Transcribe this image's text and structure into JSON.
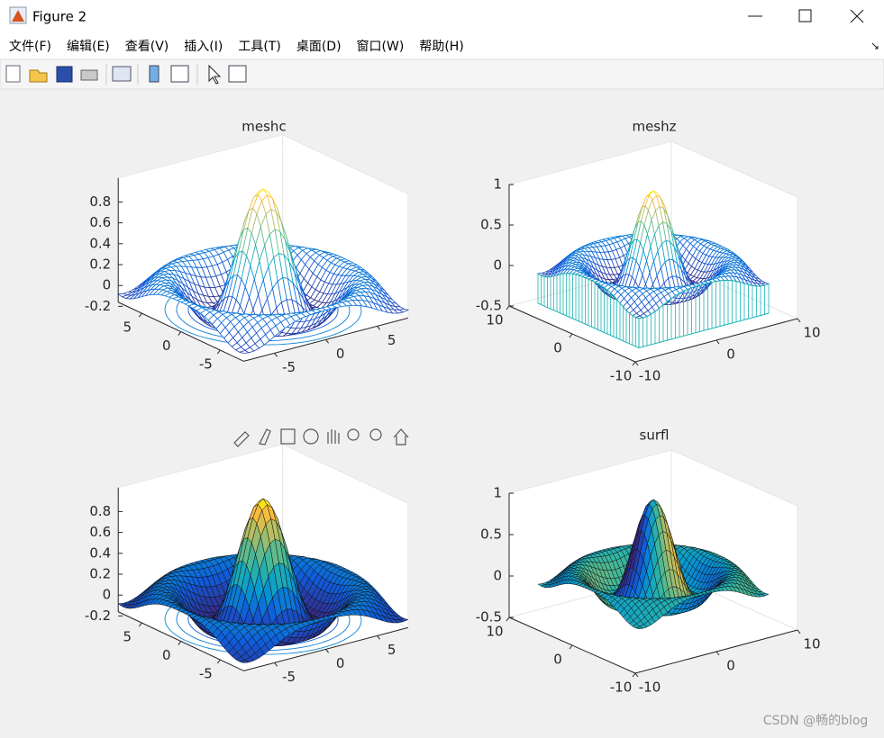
{
  "window": {
    "title": "Figure 2"
  },
  "menu": [
    "文件(F)",
    "编辑(E)",
    "查看(V)",
    "插入(I)",
    "工具(T)",
    "桌面(D)",
    "窗口(W)",
    "帮助(H)"
  ],
  "axes": [
    {
      "title": "meshc",
      "zticks": [
        0.8,
        0.6,
        0.4,
        0.2,
        0,
        -0.2
      ],
      "xticks": [
        -5,
        0,
        5
      ],
      "yticks": [
        5,
        0,
        -5
      ]
    },
    {
      "title": "meshz",
      "zticks": [
        1,
        0.5,
        0,
        -0.5
      ],
      "xticks": [
        -10,
        0,
        10
      ],
      "yticks": [
        10,
        0,
        -10
      ]
    },
    {
      "zticks": [
        0.8,
        0.6,
        0.4,
        0.2,
        0,
        -0.2
      ],
      "xticks": [
        -5,
        0,
        5
      ],
      "yticks": [
        5,
        0,
        -5
      ]
    },
    {
      "title": "surfl",
      "zticks": [
        1,
        0.5,
        0,
        -0.5
      ],
      "xticks": [
        -10,
        0,
        10
      ],
      "yticks": [
        10,
        0,
        -10
      ]
    }
  ],
  "watermark": "CSDN @畅的blog"
}
